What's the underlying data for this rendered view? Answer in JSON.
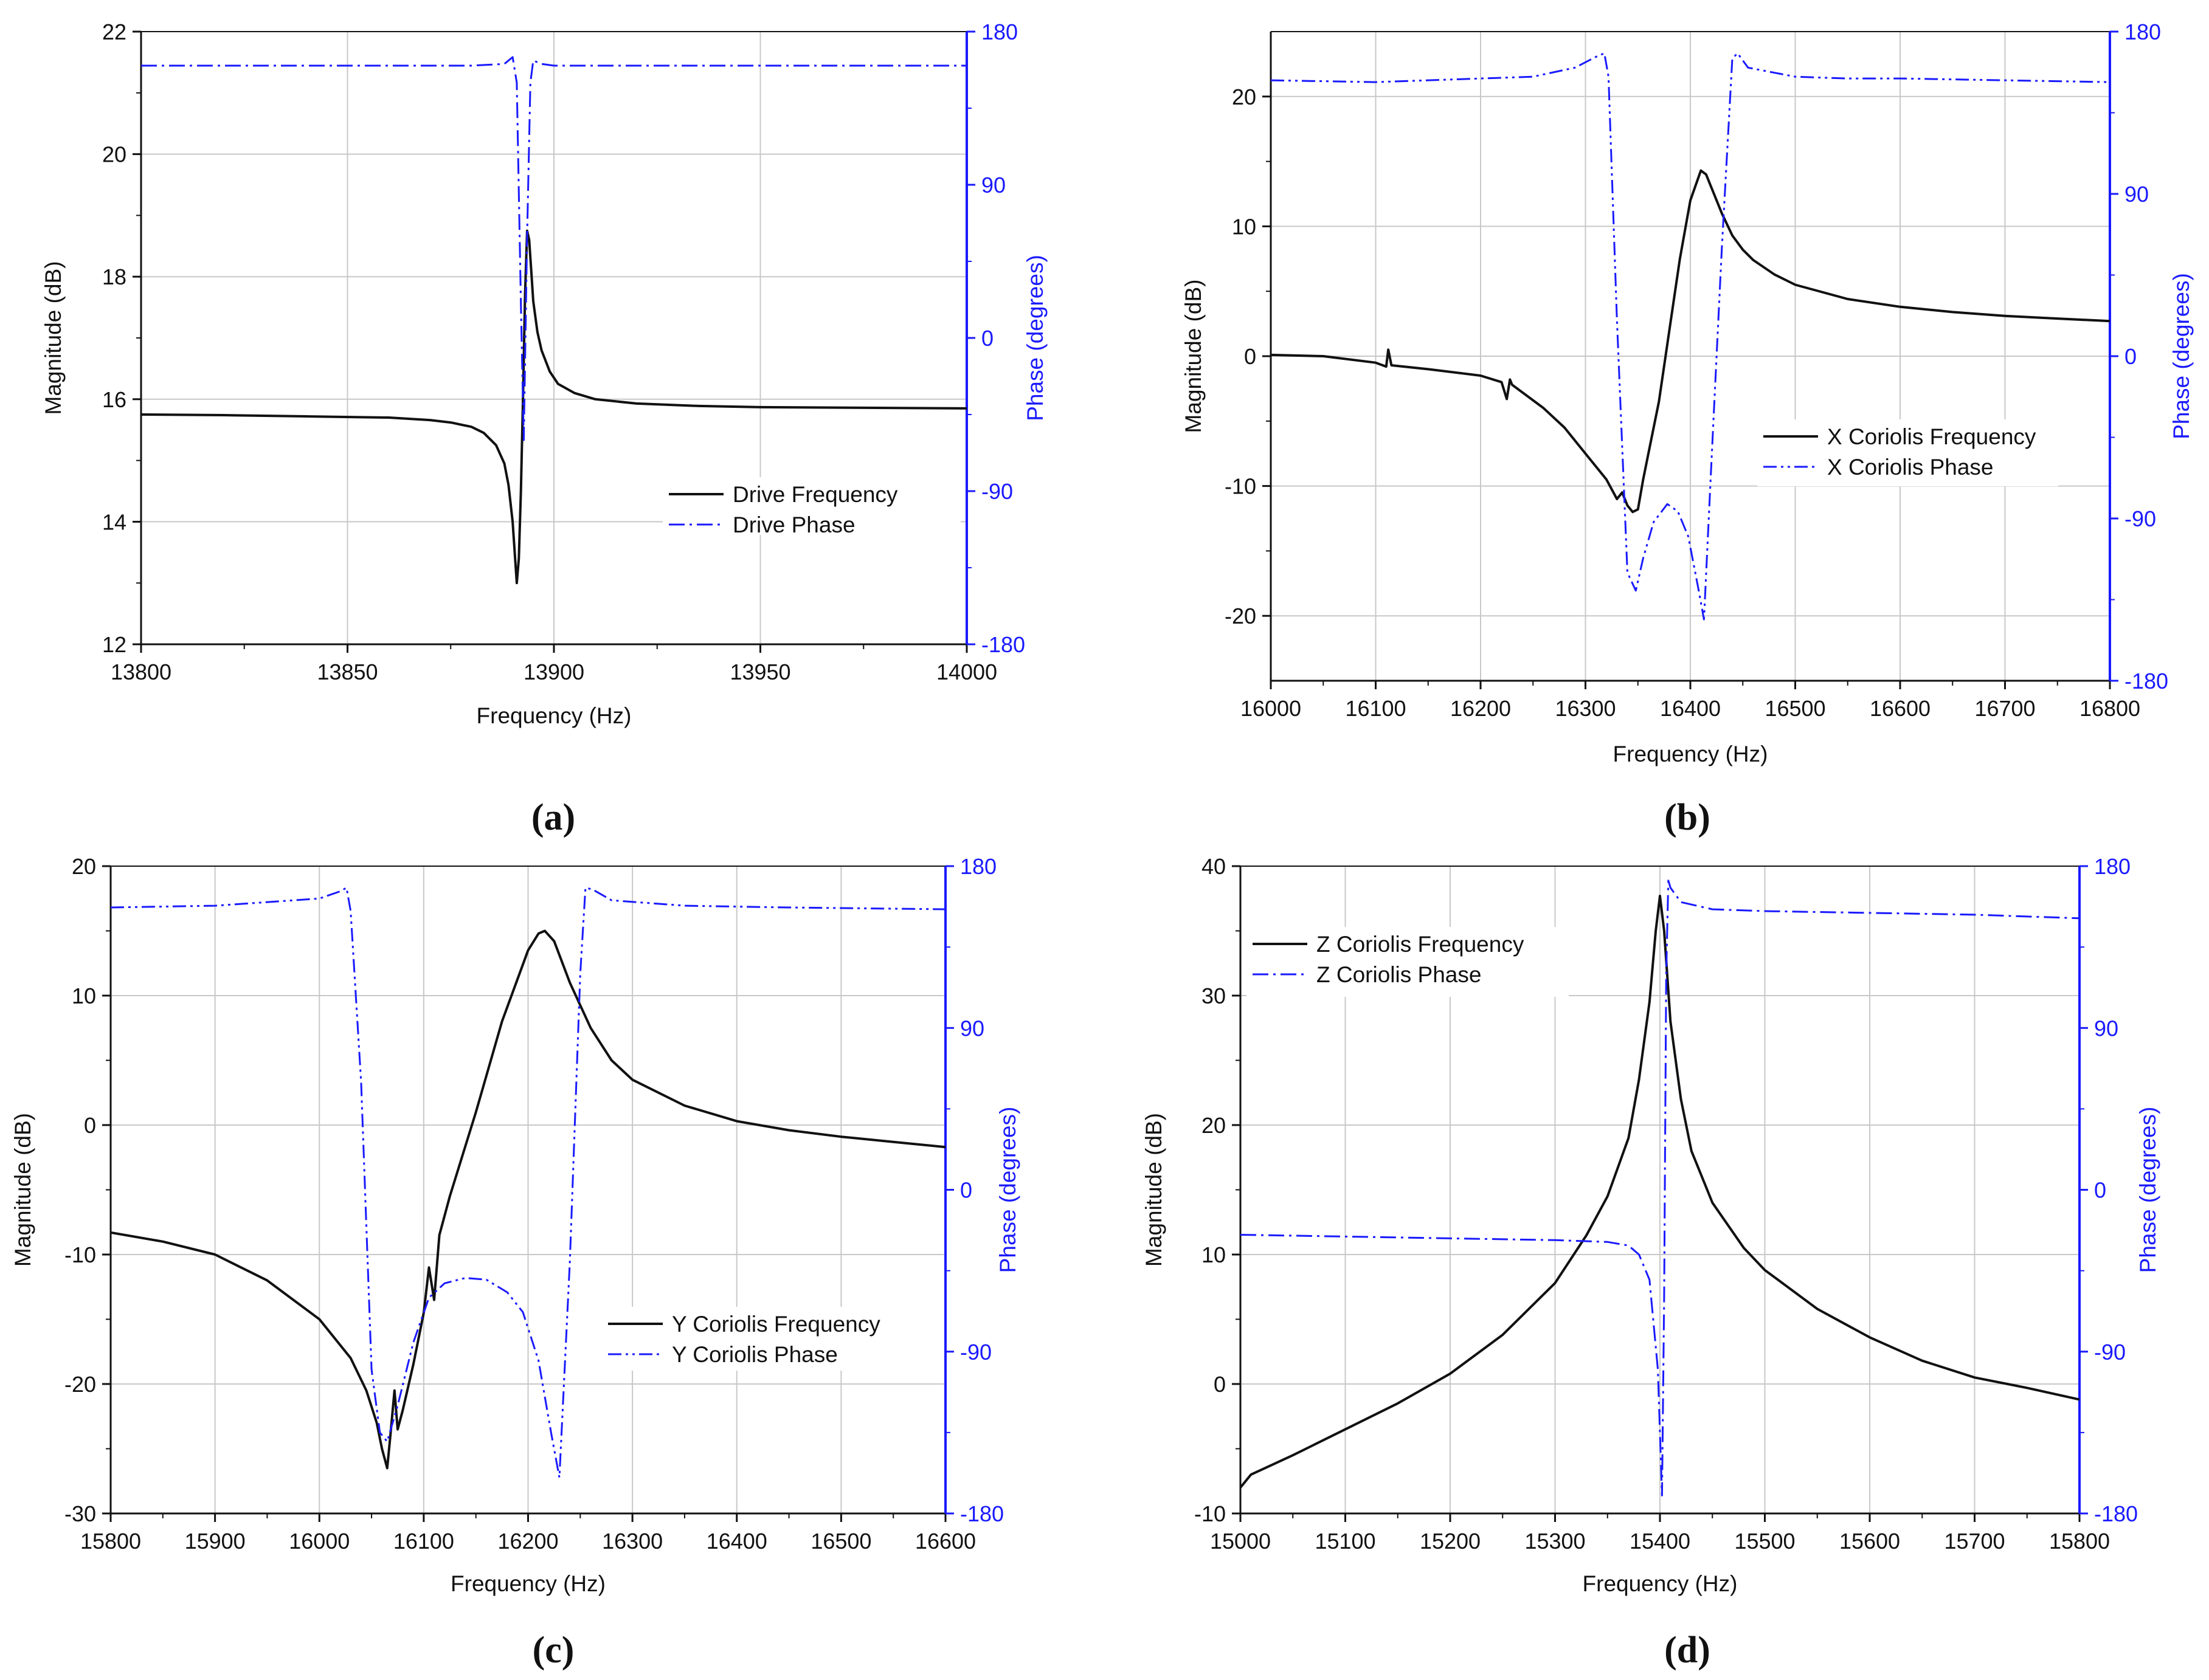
{
  "figure": {
    "caption_labels": [
      "(a)",
      "(b)",
      "(c)",
      "(d)"
    ],
    "phase_color": "#1a1aff",
    "magnitude_color": "#111111"
  },
  "chart_data": [
    {
      "id": "a",
      "type": "line",
      "caption": "a",
      "xlabel": "Frequency (Hz)",
      "ylabel": "Magnitude (dB)",
      "y2label": "Phase (degrees)",
      "xlim": [
        13800,
        14000
      ],
      "xticks": [
        13800,
        13850,
        13900,
        13950,
        14000
      ],
      "ylim": [
        12,
        22
      ],
      "yticks": [
        12,
        14,
        16,
        18,
        20,
        22
      ],
      "y2lim": [
        -180,
        180
      ],
      "y2ticks": [
        -180,
        -90,
        0,
        90,
        180
      ],
      "legend_position": "center-right",
      "series": [
        {
          "name": "Drive Frequency",
          "axis": "left",
          "style": "solid",
          "x": [
            13800,
            13820,
            13840,
            13860,
            13870,
            13875,
            13880,
            13883,
            13886,
            13888,
            13889,
            13890,
            13891,
            13891.5,
            13892,
            13892.5,
            13893,
            13893.5,
            13894,
            13894.5,
            13895,
            13896,
            13897,
            13899,
            13901,
            13905,
            13910,
            13920,
            13935,
            13950,
            13975,
            14000
          ],
          "values": [
            15.75,
            15.74,
            15.72,
            15.7,
            15.66,
            15.62,
            15.55,
            15.45,
            15.25,
            14.95,
            14.6,
            14.0,
            13.0,
            13.4,
            14.5,
            16.0,
            17.7,
            18.75,
            18.6,
            18.1,
            17.6,
            17.1,
            16.8,
            16.45,
            16.25,
            16.1,
            16.0,
            15.93,
            15.89,
            15.87,
            15.86,
            15.85
          ]
        },
        {
          "name": "Drive Phase",
          "axis": "right",
          "style": "dashdot",
          "x": [
            13800,
            13850,
            13880,
            13888,
            13890,
            13891,
            13892,
            13892.7,
            13893.5,
            13894.3,
            13895,
            13897,
            13900,
            13950,
            14000
          ],
          "values": [
            160,
            160,
            160,
            161,
            165,
            150,
            20,
            -60,
            60,
            150,
            163,
            161,
            160,
            160,
            160
          ]
        }
      ]
    },
    {
      "id": "b",
      "type": "line",
      "caption": "b",
      "xlabel": "Frequency (Hz)",
      "ylabel": "Magnitude (dB)",
      "y2label": "Phase (degrees)",
      "xlim": [
        16000,
        16800
      ],
      "xticks": [
        16000,
        16100,
        16200,
        16300,
        16400,
        16500,
        16600,
        16700,
        16800
      ],
      "ylim": [
        -25,
        25
      ],
      "yticks": [
        -20,
        -10,
        0,
        10,
        20
      ],
      "y2lim": [
        -180,
        180
      ],
      "y2ticks": [
        -180,
        -90,
        0,
        90,
        180
      ],
      "legend_position": "center-right",
      "series": [
        {
          "name": "X Coriolis Frequency",
          "axis": "left",
          "style": "solid",
          "x": [
            16000,
            16050,
            16100,
            16110,
            16112,
            16115,
            16150,
            16200,
            16220,
            16225,
            16228,
            16230,
            16235,
            16260,
            16280,
            16300,
            16320,
            16330,
            16335,
            16340,
            16345,
            16350,
            16355,
            16360,
            16370,
            16380,
            16390,
            16400,
            16410,
            16415,
            16420,
            16430,
            16440,
            16450,
            16460,
            16480,
            16500,
            16550,
            16600,
            16650,
            16700,
            16750,
            16800
          ],
          "values": [
            0.1,
            0,
            -0.5,
            -0.8,
            0.5,
            -0.7,
            -1.0,
            -1.5,
            -2.0,
            -3.3,
            -1.8,
            -2.2,
            -2.5,
            -4.0,
            -5.5,
            -7.5,
            -9.5,
            -11.0,
            -10.5,
            -11.5,
            -12.0,
            -11.8,
            -9.5,
            -7.5,
            -3.5,
            2.0,
            7.5,
            12.0,
            14.3,
            14.0,
            13.0,
            11.0,
            9.3,
            8.2,
            7.4,
            6.3,
            5.5,
            4.4,
            3.8,
            3.4,
            3.1,
            2.9,
            2.7
          ]
        },
        {
          "name": "X Coriolis Phase",
          "axis": "right",
          "style": "dashdotdot",
          "x": [
            16000,
            16100,
            16200,
            16250,
            16290,
            16310,
            16318,
            16322,
            16330,
            16340,
            16348,
            16355,
            16365,
            16378,
            16388,
            16398,
            16408,
            16413,
            16420,
            16430,
            16440,
            16445,
            16455,
            16500,
            16550,
            16600,
            16700,
            16800
          ],
          "values": [
            153,
            152,
            154,
            155,
            160,
            166,
            168,
            155,
            20,
            -120,
            -130,
            -112,
            -92,
            -82,
            -86,
            -100,
            -130,
            -146,
            -60,
            60,
            165,
            168,
            160,
            155,
            154,
            154,
            153,
            152
          ]
        }
      ]
    },
    {
      "id": "c",
      "type": "line",
      "caption": "c",
      "xlabel": "Frequency (Hz)",
      "ylabel": "Magnitude (dB)",
      "y2label": "Phase (degrees)",
      "xlim": [
        15800,
        16600
      ],
      "xticks": [
        15800,
        15900,
        16000,
        16100,
        16200,
        16300,
        16400,
        16500,
        16600
      ],
      "ylim": [
        -30,
        20
      ],
      "yticks": [
        -30,
        -20,
        -10,
        0,
        10,
        20
      ],
      "y2lim": [
        -180,
        180
      ],
      "y2ticks": [
        -180,
        -90,
        0,
        90,
        180
      ],
      "legend_position": "center-right",
      "series": [
        {
          "name": "Y Coriolis Frequency",
          "axis": "left",
          "style": "solid",
          "x": [
            15800,
            15850,
            15900,
            15950,
            16000,
            16030,
            16045,
            16055,
            16060,
            16065,
            16068,
            16072,
            16075,
            16080,
            16090,
            16100,
            16105,
            16110,
            16115,
            16125,
            16150,
            16175,
            16200,
            16210,
            16216,
            16225,
            16240,
            16260,
            16280,
            16300,
            16350,
            16400,
            16450,
            16500,
            16550,
            16600
          ],
          "values": [
            -8.3,
            -9.0,
            -10.0,
            -12.0,
            -15.0,
            -18.0,
            -20.5,
            -23.0,
            -25.0,
            -26.5,
            -24.0,
            -20.5,
            -23.5,
            -22.0,
            -18.5,
            -14.5,
            -11.0,
            -13.5,
            -8.5,
            -5.5,
            1.0,
            8.0,
            13.5,
            14.8,
            15.0,
            14.2,
            11.0,
            7.5,
            5.0,
            3.5,
            1.5,
            0.3,
            -0.4,
            -0.9,
            -1.3,
            -1.7
          ]
        },
        {
          "name": "Y Coriolis Phase",
          "axis": "right",
          "style": "dashdotdot",
          "x": [
            15800,
            15900,
            16000,
            16020,
            16026,
            16030,
            16040,
            16050,
            16058,
            16065,
            16075,
            16090,
            16105,
            16120,
            16140,
            16160,
            16180,
            16195,
            16210,
            16222,
            16230,
            16240,
            16250,
            16255,
            16262,
            16280,
            16350,
            16450,
            16600
          ],
          "values": [
            157,
            158,
            162,
            166,
            168,
            155,
            60,
            -100,
            -135,
            -140,
            -120,
            -85,
            -60,
            -52,
            -49,
            -50,
            -57,
            -68,
            -95,
            -135,
            -160,
            -40,
            120,
            168,
            167,
            161,
            158,
            157,
            156
          ]
        }
      ]
    },
    {
      "id": "d",
      "type": "line",
      "caption": "d",
      "xlabel": "Frequency (Hz)",
      "ylabel": "Magnitude (dB)",
      "y2label": "Phase (degrees)",
      "xlim": [
        15000,
        15800
      ],
      "xticks": [
        15000,
        15100,
        15200,
        15300,
        15400,
        15500,
        15600,
        15700,
        15800
      ],
      "ylim": [
        -10,
        40
      ],
      "yticks": [
        -10,
        0,
        10,
        20,
        30,
        40
      ],
      "y2lim": [
        -180,
        180
      ],
      "y2ticks": [
        -180,
        -90,
        0,
        90,
        180
      ],
      "legend_position": "top-left",
      "series": [
        {
          "name": "Z Coriolis Frequency",
          "axis": "left",
          "style": "solid",
          "x": [
            15000,
            15010,
            15050,
            15100,
            15150,
            15200,
            15250,
            15300,
            15330,
            15350,
            15370,
            15380,
            15390,
            15396,
            15400,
            15404,
            15410,
            15420,
            15430,
            15450,
            15480,
            15500,
            15550,
            15600,
            15650,
            15700,
            15750,
            15800
          ],
          "values": [
            -8.0,
            -7.0,
            -5.5,
            -3.5,
            -1.5,
            0.8,
            3.8,
            7.8,
            11.5,
            14.5,
            19.0,
            23.5,
            29.5,
            35.0,
            37.7,
            35.0,
            28.0,
            22.0,
            18.0,
            14.0,
            10.5,
            8.8,
            5.8,
            3.6,
            1.8,
            0.5,
            -0.3,
            -1.2
          ]
        },
        {
          "name": "Z Coriolis Phase",
          "axis": "right",
          "style": "dashdot",
          "x": [
            15000,
            15100,
            15200,
            15300,
            15350,
            15370,
            15380,
            15390,
            15398,
            15402,
            15404,
            15406,
            15408,
            15410,
            15420,
            15450,
            15500,
            15600,
            15700,
            15800
          ],
          "values": [
            -25,
            -26,
            -27,
            -28,
            -29,
            -31,
            -36,
            -50,
            -100,
            -170,
            -60,
            120,
            172,
            168,
            160,
            156,
            155,
            154,
            153,
            151
          ]
        }
      ]
    }
  ]
}
